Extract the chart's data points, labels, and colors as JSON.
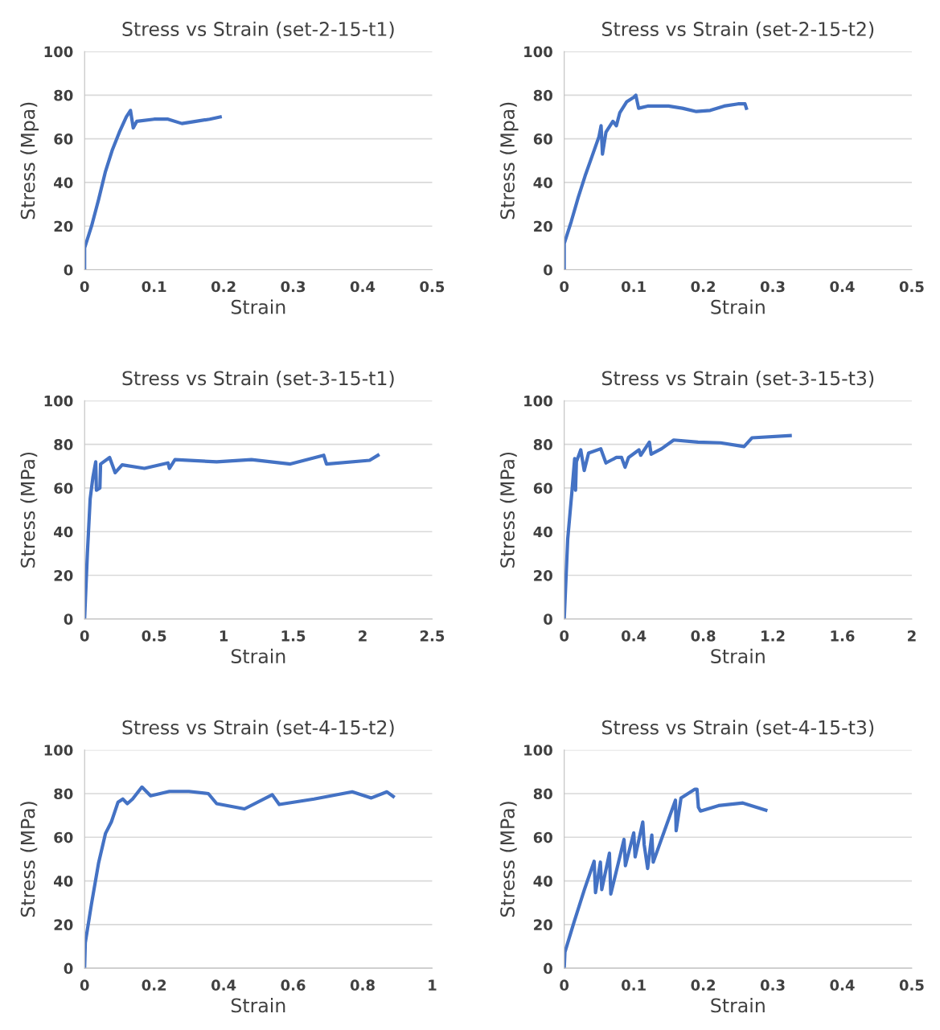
{
  "chart_data": [
    {
      "type": "line",
      "title": "Stress vs Strain (set-2-15-t1)",
      "xlabel": "Strain",
      "ylabel": "Stress (Mpa)",
      "xlim": [
        0,
        0.5
      ],
      "xticks": [
        0,
        0.1,
        0.2,
        0.3,
        0.4,
        0.5
      ],
      "ylim": [
        0,
        100
      ],
      "yticks": [
        0,
        20,
        40,
        60,
        80,
        100
      ],
      "grid": "y",
      "marker": "none",
      "line_style": "solid",
      "series": [
        {
          "color": "#4472c4",
          "x": [
            0,
            0,
            0.01,
            0.02,
            0.03,
            0.04,
            0.05,
            0.06,
            0.066,
            0.07,
            0.075,
            0.1,
            0.12,
            0.14,
            0.16,
            0.18,
            0.195
          ],
          "values": [
            0,
            10,
            20,
            32,
            45,
            55,
            63,
            70,
            73,
            65,
            68,
            69,
            69,
            67,
            68,
            69,
            70
          ]
        }
      ]
    },
    {
      "type": "line",
      "title": "Stress vs Strain (set-2-15-t2)",
      "xlabel": "Strain",
      "ylabel": "Stress (Mpa)",
      "xlim": [
        0,
        0.5
      ],
      "xticks": [
        0,
        0.1,
        0.2,
        0.3,
        0.4,
        0.5
      ],
      "ylim": [
        0,
        100
      ],
      "yticks": [
        0,
        20,
        40,
        60,
        80,
        100
      ],
      "grid": "y",
      "marker": "none",
      "line_style": "solid",
      "series": [
        {
          "color": "#4472c4",
          "x": [
            0,
            0,
            0.01,
            0.02,
            0.03,
            0.04,
            0.05,
            0.053,
            0.055,
            0.06,
            0.07,
            0.075,
            0.08,
            0.09,
            0.1,
            0.103,
            0.107,
            0.12,
            0.15,
            0.17,
            0.19,
            0.21,
            0.23,
            0.25,
            0.26,
            0.262
          ],
          "values": [
            0,
            12,
            22,
            33,
            43,
            52,
            61,
            66,
            53,
            63,
            68,
            66,
            72,
            77,
            79,
            80,
            74,
            75,
            75,
            74,
            72.5,
            73,
            75,
            76,
            76,
            74
          ]
        }
      ]
    },
    {
      "type": "line",
      "title": "Stress vs Strain (set-3-15-t1)",
      "xlabel": "Strain",
      "ylabel": "Stress (MPa)",
      "xlim": [
        0,
        2.5
      ],
      "xticks": [
        0,
        0.5,
        1,
        1.5,
        2,
        2.5
      ],
      "ylim": [
        0,
        100
      ],
      "yticks": [
        0,
        20,
        40,
        60,
        80,
        100
      ],
      "grid": "y",
      "marker": "none",
      "line_style": "solid",
      "series": [
        {
          "color": "#4472c4",
          "x": [
            0,
            0.02,
            0.04,
            0.06,
            0.08,
            0.085,
            0.11,
            0.115,
            0.18,
            0.22,
            0.27,
            0.43,
            0.6,
            0.61,
            0.65,
            0.95,
            1.2,
            1.48,
            1.72,
            1.74,
            2.05,
            2.11
          ],
          "values": [
            0,
            30,
            55,
            65,
            72,
            59,
            60,
            71,
            74,
            67,
            70.6,
            69,
            71.5,
            69,
            73,
            72,
            73,
            71,
            75,
            71,
            72.7,
            75
          ]
        }
      ]
    },
    {
      "type": "line",
      "title": "Stress vs Strain (set-3-15-t3)",
      "xlabel": "Strain",
      "ylabel": "Stress (MPa)",
      "xlim": [
        0,
        2
      ],
      "xticks": [
        0,
        0.4,
        0.8,
        1.2,
        1.6,
        2
      ],
      "ylim": [
        0,
        100
      ],
      "yticks": [
        0,
        20,
        40,
        60,
        80,
        100
      ],
      "grid": "y",
      "marker": "none",
      "line_style": "solid",
      "series": [
        {
          "color": "#4472c4",
          "x": [
            0,
            0.02,
            0.045,
            0.06,
            0.065,
            0.07,
            0.095,
            0.115,
            0.14,
            0.21,
            0.24,
            0.3,
            0.33,
            0.35,
            0.37,
            0.43,
            0.44,
            0.49,
            0.5,
            0.56,
            0.63,
            0.77,
            0.9,
            1.035,
            1.08,
            1.3
          ],
          "values": [
            0,
            36.6,
            59,
            73.5,
            59,
            72,
            77.5,
            68,
            76,
            78,
            71.5,
            74,
            74,
            69.5,
            74,
            77.5,
            75,
            81,
            75.5,
            78,
            82,
            81,
            80.7,
            79,
            83,
            84
          ]
        }
      ]
    },
    {
      "type": "line",
      "title": "Stress vs Strain (set-4-15-t2)",
      "xlabel": "Strain",
      "ylabel": "Stress (MPa)",
      "xlim": [
        0,
        1
      ],
      "xticks": [
        0,
        0.2,
        0.4,
        0.6,
        0.8,
        1
      ],
      "ylim": [
        0,
        100
      ],
      "yticks": [
        0,
        20,
        40,
        60,
        80,
        100
      ],
      "grid": "y",
      "marker": "none",
      "line_style": "solid",
      "series": [
        {
          "color": "#4472c4",
          "x": [
            0,
            0.002,
            0.02,
            0.04,
            0.06,
            0.077,
            0.096,
            0.11,
            0.123,
            0.138,
            0.165,
            0.19,
            0.244,
            0.3,
            0.356,
            0.38,
            0.46,
            0.54,
            0.56,
            0.66,
            0.77,
            0.825,
            0.87,
            0.888
          ],
          "values": [
            0,
            11.7,
            29.6,
            48,
            61.7,
            67,
            76,
            77.5,
            75.4,
            77.5,
            83,
            79,
            81,
            81,
            80,
            75.4,
            73,
            79.5,
            75,
            77.5,
            80.8,
            78,
            80.8,
            78.7
          ]
        }
      ]
    },
    {
      "type": "line",
      "title": "Stress vs Strain (set-4-15-t3)",
      "xlabel": "Strain",
      "ylabel": "Stress (MPa)",
      "xlim": [
        0,
        0.5
      ],
      "xticks": [
        0,
        0.1,
        0.2,
        0.3,
        0.4,
        0.5
      ],
      "ylim": [
        0,
        100
      ],
      "yticks": [
        0,
        20,
        40,
        60,
        80,
        100
      ],
      "grid": "y",
      "marker": "none",
      "line_style": "solid",
      "series": [
        {
          "color": "#4472c4",
          "x": [
            0,
            0.001,
            0.014,
            0.029,
            0.043,
            0.045,
            0.052,
            0.054,
            0.065,
            0.067,
            0.086,
            0.088,
            0.1,
            0.102,
            0.113,
            0.115,
            0.12,
            0.126,
            0.128,
            0.16,
            0.161,
            0.168,
            0.188,
            0.191,
            0.193,
            0.196,
            0.222,
            0.257,
            0.29
          ],
          "values": [
            0,
            7.4,
            21,
            36,
            49,
            34.6,
            48.6,
            36,
            52.7,
            34,
            59,
            47,
            62,
            51,
            67,
            56.6,
            45.7,
            61,
            48.6,
            77,
            63,
            78,
            82,
            82,
            73.7,
            72,
            74.5,
            75.7,
            72.4
          ]
        }
      ]
    }
  ]
}
